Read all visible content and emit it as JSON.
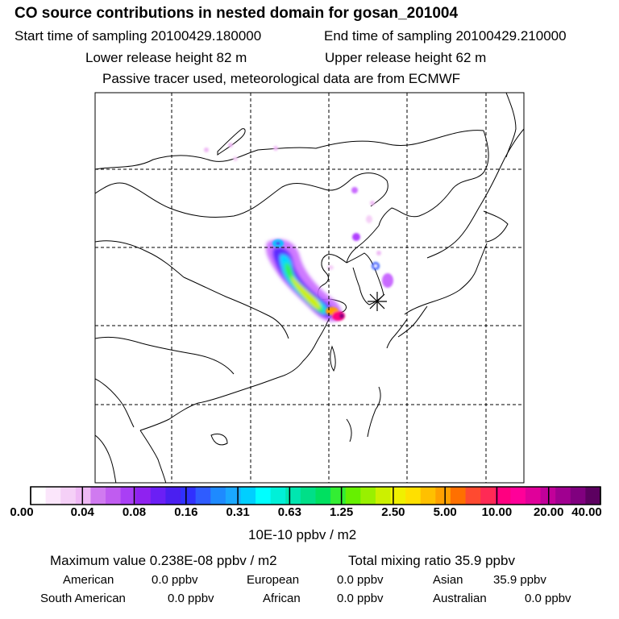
{
  "header": {
    "title": "CO  source contributions in nested domain for gosan_201004",
    "start_label": "Start time of sampling 20100429.180000",
    "end_label": "End time of sampling 20100429.210000",
    "lower_label": "Lower release height   82 m",
    "upper_label": "Upper release height   62 m",
    "note": "Passive tracer used, meteorological data are from ECMWF"
  },
  "legend": {
    "ticks": [
      "0.00",
      "0.04",
      "0.08",
      "0.16",
      "0.31",
      "0.63",
      "1.25",
      "2.50",
      "5.00",
      "10.00",
      "20.00",
      "40.00"
    ],
    "units": "10E-10 ppbv / m2",
    "colors": [
      "#ffffff",
      "#fbe6fb",
      "#f5d0f7",
      "#efb9f5",
      "#d07af0",
      "#c05cf0",
      "#a93ff5",
      "#8f22f0",
      "#6b1ff5",
      "#4a1ff0",
      "#3030ff",
      "#2f5cff",
      "#1e8aff",
      "#1aa8ff",
      "#00cfff",
      "#00ffff",
      "#00f0d8",
      "#00e6b0",
      "#00df88",
      "#00e060",
      "#33ee33",
      "#66f000",
      "#99f000",
      "#ccf000",
      "#f0f000",
      "#ffe000",
      "#ffc000",
      "#ffa000",
      "#ff7000",
      "#ff4a30",
      "#ff2a55",
      "#ff0080",
      "#ff0099",
      "#e0009a",
      "#c2009a",
      "#a00090",
      "#80007f",
      "#5c0060"
    ]
  },
  "stats": {
    "max_label": "Maximum value  0.238E-08 ppbv / m2",
    "total_label": "Total mixing ratio      35.9 ppbv"
  },
  "regions": [
    {
      "name": "American",
      "value": "0.0 ppbv"
    },
    {
      "name": "European",
      "value": "0.0 ppbv"
    },
    {
      "name": "Asian",
      "value": "35.9 ppbv"
    },
    {
      "name": "South American",
      "value": "0.0 ppbv"
    },
    {
      "name": "African",
      "value": "0.0 ppbv"
    },
    {
      "name": "Australian",
      "value": "0.0 ppbv"
    }
  ]
}
